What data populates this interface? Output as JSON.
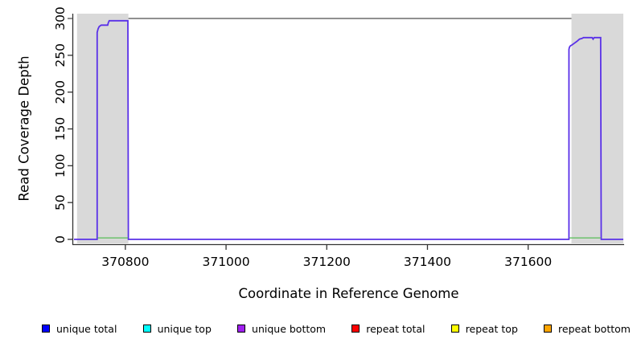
{
  "chart_data": {
    "type": "line",
    "title": "",
    "xlabel": "Coordinate in Reference Genome",
    "ylabel": "Read Coverage Depth",
    "xlim": [
      370698,
      371789
    ],
    "ylim": [
      0,
      300
    ],
    "x_ticks": [
      370800,
      371000,
      371200,
      371400,
      371600
    ],
    "y_ticks": [
      0,
      50,
      100,
      150,
      200,
      250,
      300
    ],
    "grid": false,
    "legend_position": "bottom",
    "axis_color": "#333333",
    "cap_line": {
      "depth": 300,
      "x_from": 370806,
      "x_to": 371686,
      "color": "#909090"
    },
    "repeat_regions": [
      {
        "from": 370704,
        "to": 370806
      },
      {
        "from": 371686,
        "to": 371789
      }
    ],
    "region_fill": "#d9d9d9",
    "series": [
      {
        "key": "unique-coverage-curve",
        "name": "unique total / unique bottom (overlapping)",
        "color": "#5a31e8",
        "width": 1.8,
        "points": [
          [
            370698,
            0
          ],
          [
            370744,
            0
          ],
          [
            370744,
            281
          ],
          [
            370746,
            286
          ],
          [
            370748,
            289
          ],
          [
            370752,
            291
          ],
          [
            370765,
            291
          ],
          [
            370766,
            294
          ],
          [
            370768,
            297
          ],
          [
            370805,
            297
          ],
          [
            370806,
            0
          ],
          [
            371681,
            0
          ],
          [
            371681,
            258
          ],
          [
            371682,
            261
          ],
          [
            371684,
            263
          ],
          [
            371687,
            264
          ],
          [
            371691,
            266
          ],
          [
            371697,
            269
          ],
          [
            371702,
            272
          ],
          [
            371707,
            273
          ],
          [
            371710,
            274
          ],
          [
            371727,
            274
          ],
          [
            371729,
            272
          ],
          [
            371731,
            274
          ],
          [
            371744,
            274
          ],
          [
            371745,
            0
          ],
          [
            371789,
            0
          ]
        ]
      },
      {
        "key": "top-strand-overlap-left",
        "name": "unique top / repeat top overlap (left block)",
        "color": "#62bf62",
        "width": 1.3,
        "points": [
          [
            370745,
            2
          ],
          [
            370805,
            2
          ]
        ]
      },
      {
        "key": "top-strand-overlap-right",
        "name": "unique top / repeat top overlap (right block)",
        "color": "#62bf62",
        "width": 1.3,
        "points": [
          [
            371682,
            2
          ],
          [
            371744,
            2
          ]
        ]
      }
    ],
    "legend": {
      "items": [
        {
          "key": "unique-total",
          "label": "unique total",
          "color": "#0000ff"
        },
        {
          "key": "unique-top",
          "label": "unique top",
          "color": "#00ffff"
        },
        {
          "key": "unique-bottom",
          "label": "unique bottom",
          "color": "#a020f0"
        },
        {
          "key": "repeat-total",
          "label": "repeat total",
          "color": "#ff0000"
        },
        {
          "key": "repeat-top",
          "label": "repeat top",
          "color": "#ffff00"
        },
        {
          "key": "repeat-bottom",
          "label": "repeat bottom",
          "color": "#ffa500"
        }
      ]
    }
  }
}
